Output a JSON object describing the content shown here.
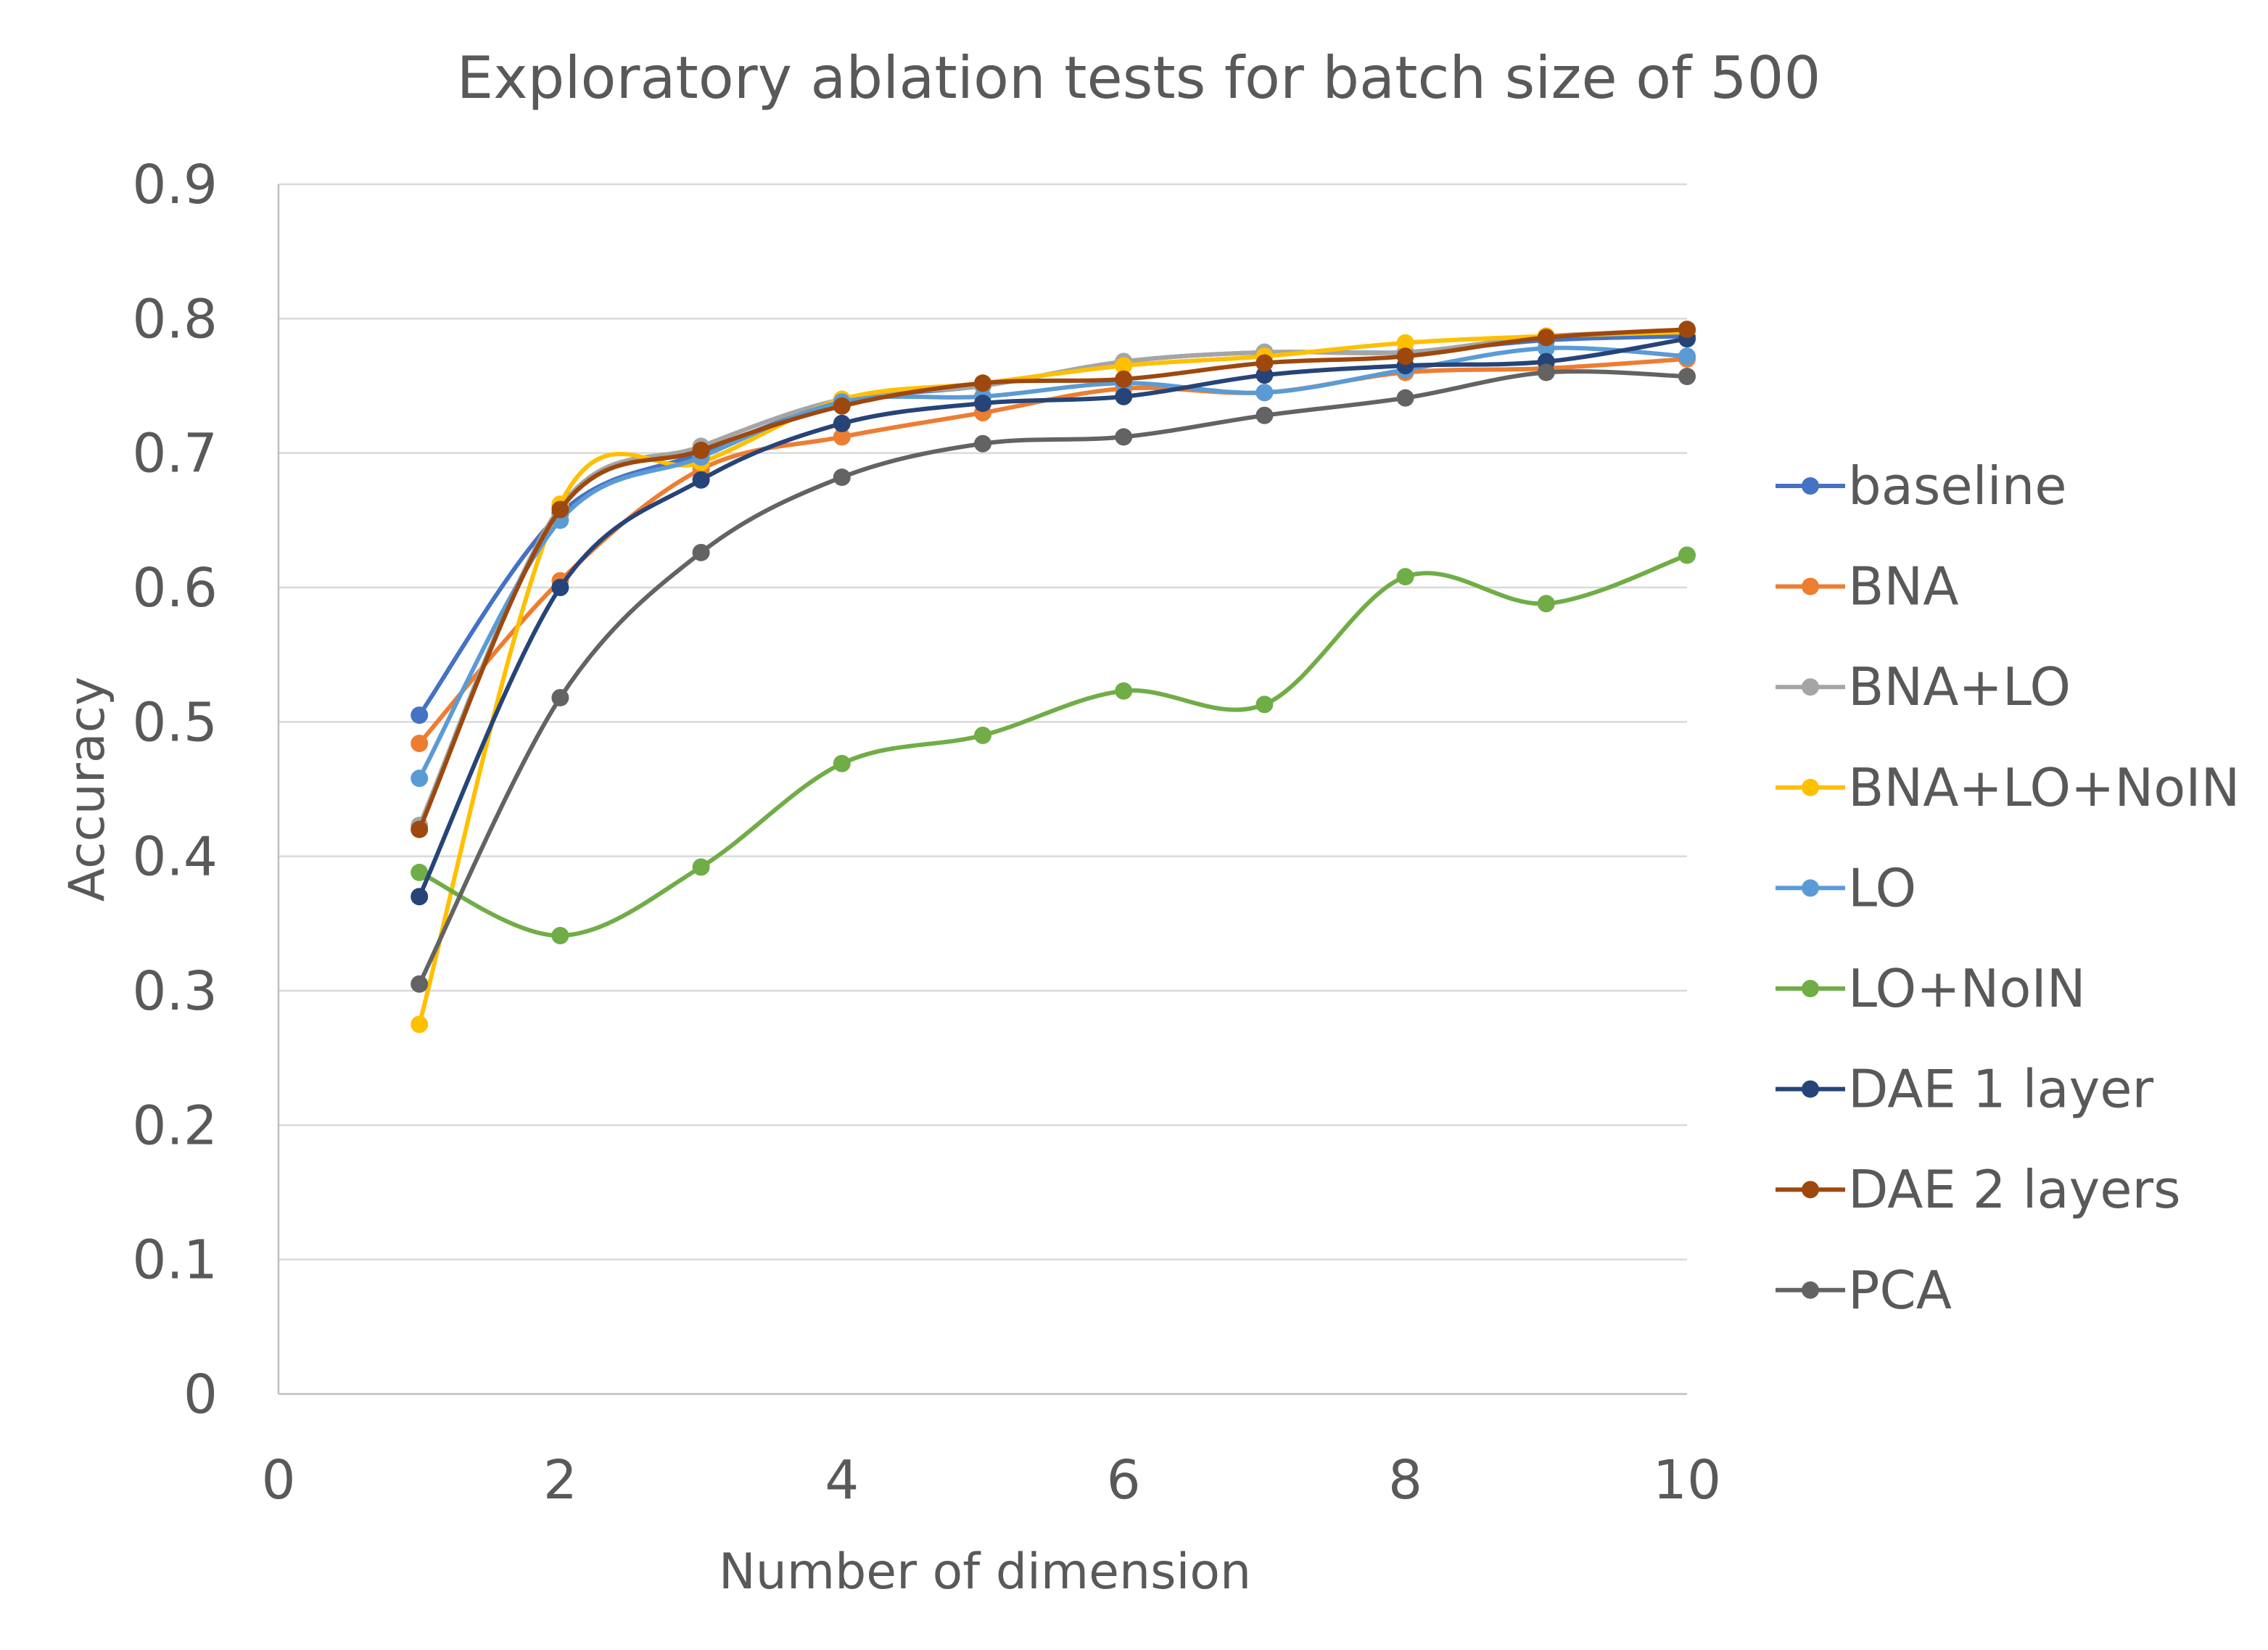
{
  "chart_data": {
    "type": "line",
    "title": "Exploratory ablation tests for batch size of 500",
    "xlabel": "Number of dimension",
    "ylabel": "Accuracy",
    "xlim": [
      0,
      10
    ],
    "ylim": [
      0,
      0.9
    ],
    "x_ticks": [
      "0",
      "2",
      "4",
      "6",
      "8",
      "10"
    ],
    "y_ticks": [
      "0",
      "0.1",
      "0.2",
      "0.3",
      "0.4",
      "0.5",
      "0.6",
      "0.7",
      "0.8",
      "0.9"
    ],
    "x": [
      1,
      2,
      3,
      4,
      5,
      6,
      7,
      8,
      9,
      10
    ],
    "grid": "horizontal",
    "legend_position": "right",
    "series": [
      {
        "name": "baseline",
        "color": "#4472C4",
        "values": [
          0.505,
          0.655,
          0.7,
          0.738,
          0.75,
          0.768,
          0.775,
          0.775,
          0.784,
          0.787
        ]
      },
      {
        "name": "BNA",
        "color": "#ED7D31",
        "values": [
          0.484,
          0.605,
          0.688,
          0.712,
          0.73,
          0.748,
          0.745,
          0.76,
          0.763,
          0.77
        ]
      },
      {
        "name": "BNA+LO",
        "color": "#A5A5A5",
        "values": [
          0.423,
          0.66,
          0.705,
          0.74,
          0.75,
          0.768,
          0.775,
          0.775,
          0.787,
          0.79
        ]
      },
      {
        "name": "BNA+LO+NoIN",
        "color": "#FFC000",
        "values": [
          0.275,
          0.662,
          0.693,
          0.74,
          0.752,
          0.765,
          0.772,
          0.782,
          0.787,
          0.79
        ]
      },
      {
        "name": "LO",
        "color": "#5B9BD5",
        "values": [
          0.458,
          0.65,
          0.697,
          0.738,
          0.742,
          0.752,
          0.745,
          0.762,
          0.778,
          0.772
        ]
      },
      {
        "name": "LO+NoIN",
        "color": "#70AD47",
        "values": [
          0.388,
          0.341,
          0.392,
          0.469,
          0.49,
          0.523,
          0.513,
          0.608,
          0.588,
          0.624
        ]
      },
      {
        "name": "DAE 1 layer",
        "color": "#264478",
        "values": [
          0.37,
          0.6,
          0.68,
          0.722,
          0.737,
          0.742,
          0.758,
          0.765,
          0.768,
          0.785
        ]
      },
      {
        "name": "DAE 2 layers",
        "color": "#9E480E",
        "values": [
          0.42,
          0.658,
          0.702,
          0.735,
          0.752,
          0.755,
          0.767,
          0.772,
          0.786,
          0.792
        ]
      },
      {
        "name": "PCA",
        "color": "#636363",
        "values": [
          0.305,
          0.518,
          0.626,
          0.682,
          0.707,
          0.712,
          0.728,
          0.741,
          0.76,
          0.757
        ]
      }
    ]
  }
}
